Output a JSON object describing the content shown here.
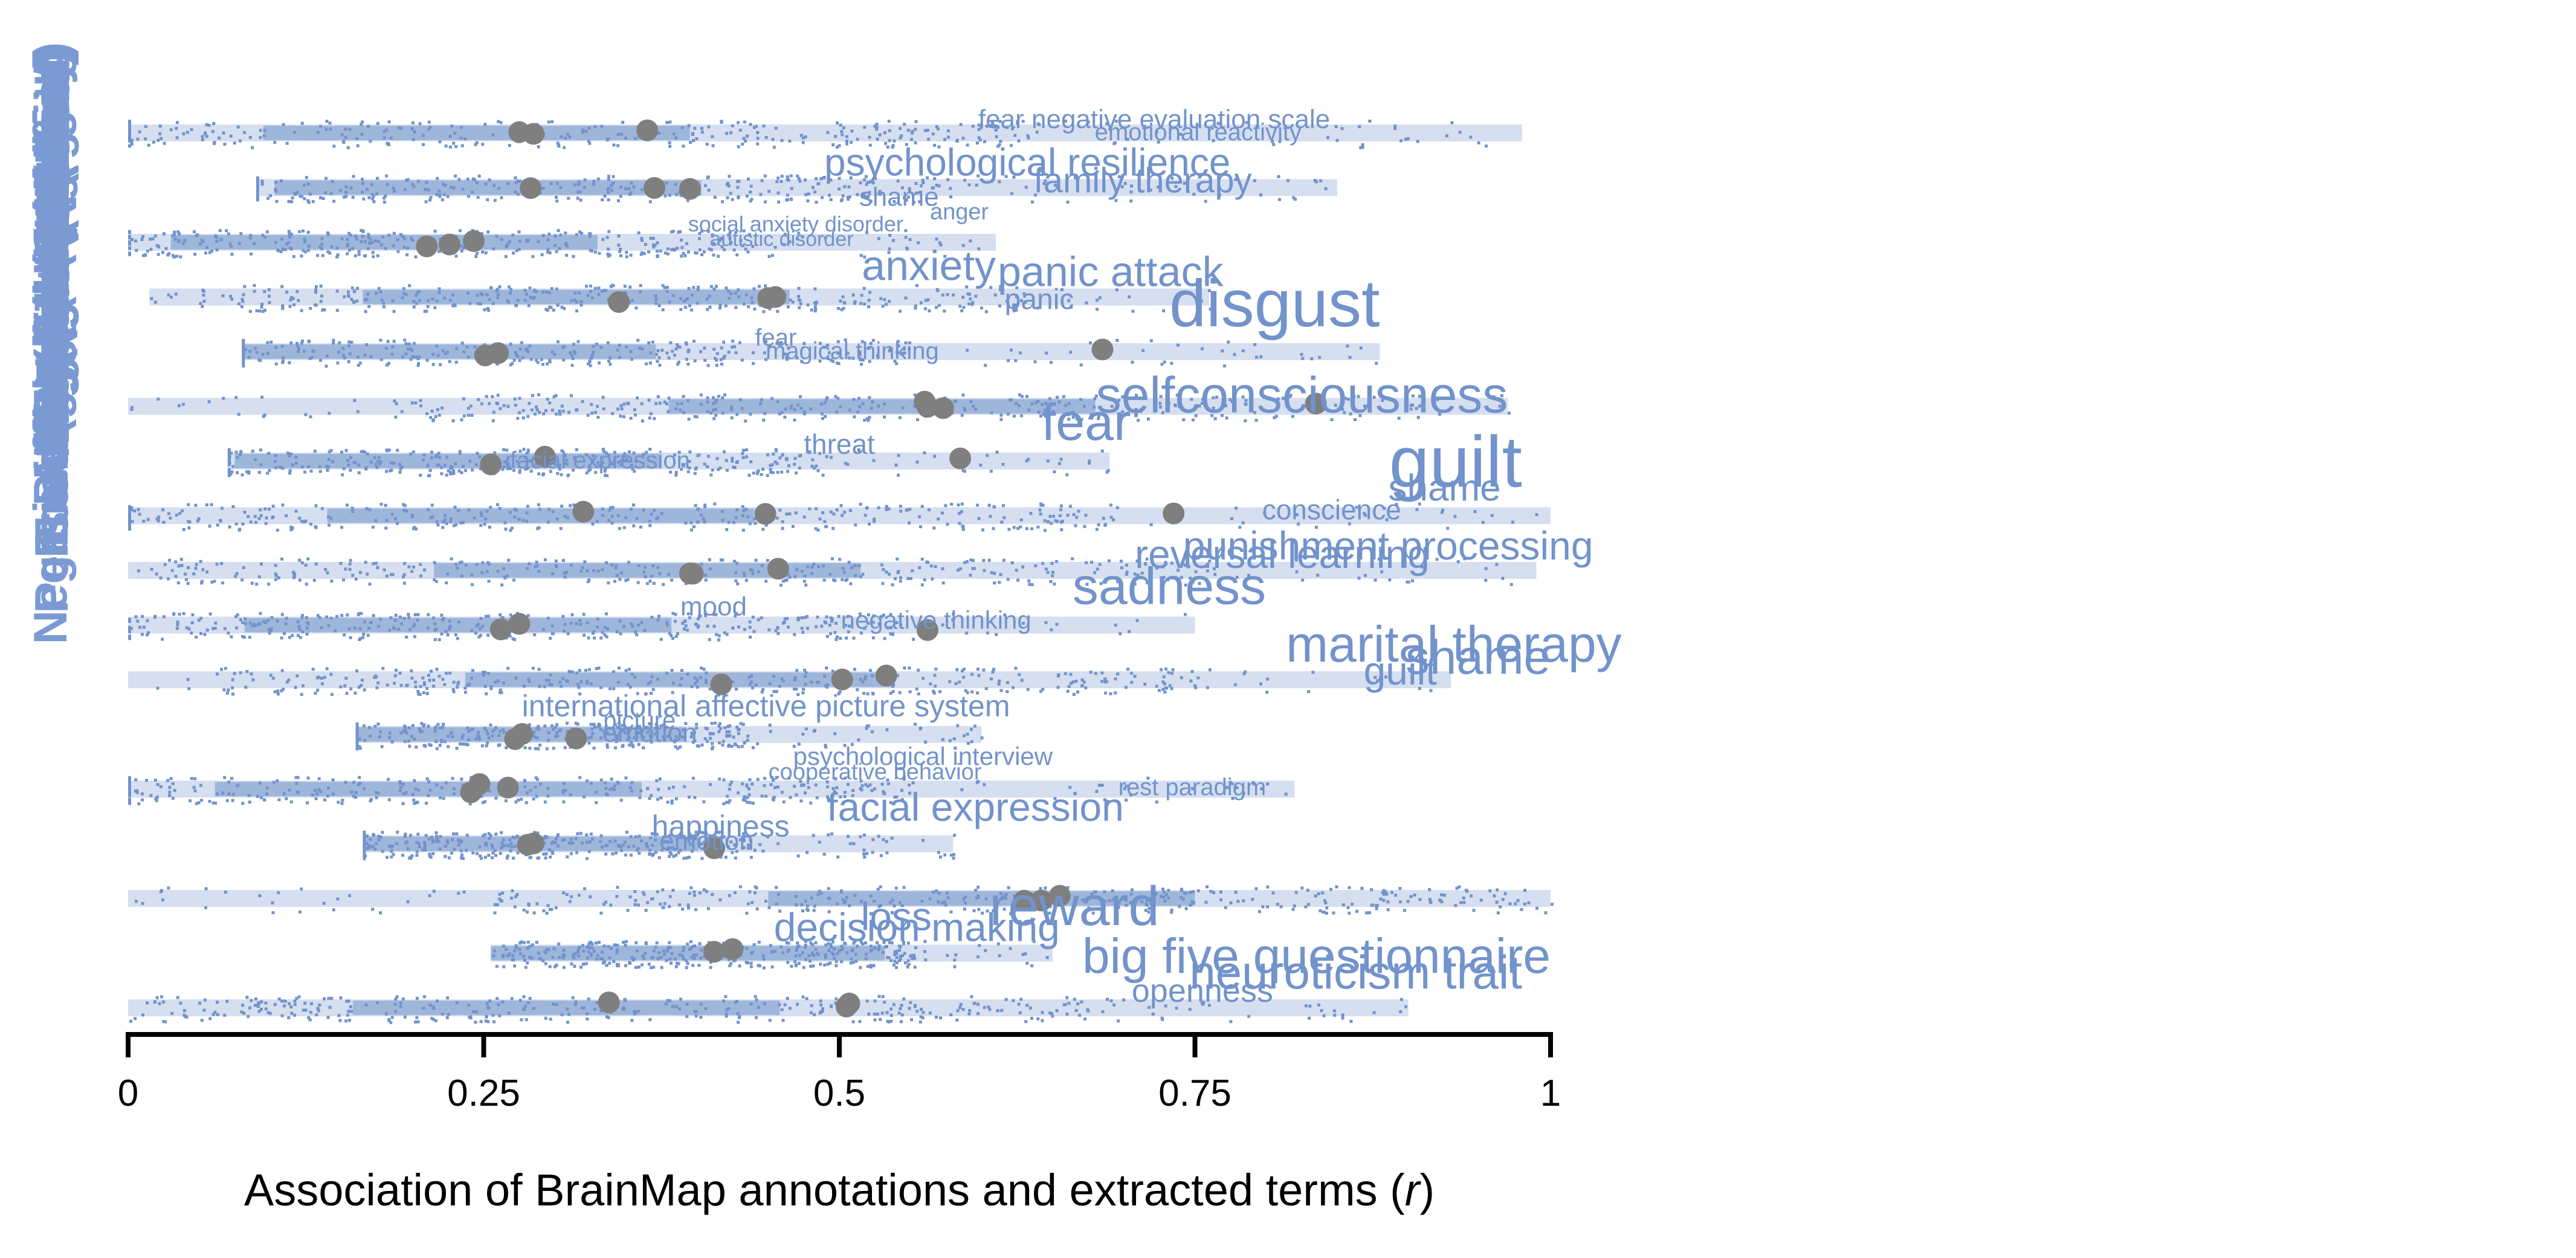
{
  "chart_data": {
    "type": "scatter",
    "xlabel_prefix": "Association of BrainMap annotations and extracted terms (",
    "xlabel_var": "r",
    "xlabel_suffix": ")",
    "xlim": [
      0,
      1
    ],
    "xticks": [
      {
        "value": 0,
        "label": "0"
      },
      {
        "value": 0.25,
        "label": "0.25"
      },
      {
        "value": 0.5,
        "label": "0.5"
      },
      {
        "value": 0.75,
        "label": "0.75"
      },
      {
        "value": 1,
        "label": "1"
      }
    ],
    "row_labels": [
      "Positive (Happiness)",
      "Positive (Reward/Gain)",
      "Positive (Love)",
      "Negative (Anger)",
      "Negative (Anxiety)",
      "Negative (Disgust)",
      "Negative (Embarrassment)",
      "Negative (Fear)",
      "Negative (Guilt)",
      "Negative (Sadness)",
      "Emotion (Unspecified)",
      "Negative (Shame)",
      "Affect (Unspecified)",
      "Social Cognition",
      "Reward",
      "Decision Making",
      "Personality (Neuroticism)"
    ],
    "rows": [
      {
        "range": [
          0.0,
          0.98
        ],
        "dots": [
          0.365,
          0.285,
          0.275
        ]
      },
      {
        "range": [
          0.09,
          0.85
        ],
        "dots": [
          0.395,
          0.37,
          0.283
        ]
      },
      {
        "range": [
          0.0,
          0.61
        ],
        "dots": [
          0.243,
          0.226,
          0.21
        ]
      },
      {
        "range": [
          0.015,
          0.76
        ],
        "dots": [
          0.455,
          0.45,
          0.345
        ]
      },
      {
        "range": [
          0.08,
          0.88
        ],
        "dots": [
          0.685,
          0.26,
          0.251
        ]
      },
      {
        "range": [
          0.0,
          0.97
        ],
        "dots": [
          0.835,
          0.573,
          0.562,
          0.56
        ]
      },
      {
        "range": [
          0.07,
          0.69
        ],
        "dots": [
          0.585,
          0.293,
          0.255
        ]
      },
      {
        "range": [
          0.0,
          1.0
        ],
        "dots": [
          0.735,
          0.448,
          0.32
        ]
      },
      {
        "range": [
          0.0,
          0.99
        ],
        "dots": [
          0.457,
          0.397,
          0.395
        ]
      },
      {
        "range": [
          0.0,
          0.75
        ],
        "dots": [
          0.562,
          0.275,
          0.262
        ]
      },
      {
        "range": [
          0.0,
          0.93
        ],
        "dots": [
          0.533,
          0.502,
          0.417
        ]
      },
      {
        "range": [
          0.16,
          0.6
        ],
        "dots": [
          0.315,
          0.277,
          0.272
        ]
      },
      {
        "range": [
          0.0,
          0.82
        ],
        "dots": [
          0.267,
          0.247,
          0.241
        ]
      },
      {
        "range": [
          0.165,
          0.58
        ],
        "dots": [
          0.412,
          0.285,
          0.281
        ]
      },
      {
        "range": [
          0.0,
          1.0
        ],
        "dots": [
          0.655,
          0.642,
          0.63
        ]
      },
      {
        "range": [
          0.255,
          0.65
        ],
        "dots": [
          0.425,
          0.412
        ]
      },
      {
        "range": [
          0.0,
          0.9
        ],
        "dots": [
          0.507,
          0.505,
          0.338
        ]
      }
    ],
    "terms": [
      {
        "row": 0,
        "x": 0.845,
        "dy": -8,
        "text": "fear negative evaluation scale",
        "size": 44
      },
      {
        "row": 0,
        "x": 0.825,
        "dy": 12,
        "text": "emotional reactivity",
        "size": 40
      },
      {
        "row": 1,
        "x": 0.775,
        "dy": -20,
        "text": "psychological resilience",
        "size": 64
      },
      {
        "row": 1,
        "x": 0.79,
        "dy": 8,
        "text": "family therapy",
        "size": 58
      },
      {
        "row": 1,
        "x": 0.57,
        "dy": 30,
        "text": "shame",
        "size": 44
      },
      {
        "row": 2,
        "x": 0.605,
        "dy": -38,
        "text": "anger",
        "size": 38
      },
      {
        "row": 2,
        "x": 0.545,
        "dy": -18,
        "text": "social anxiety disorder",
        "size": 36
      },
      {
        "row": 2,
        "x": 0.51,
        "dy": 6,
        "text": "autistic disorder",
        "size": 34
      },
      {
        "row": 3,
        "x": 0.61,
        "dy": -28,
        "text": "anxiety",
        "size": 70
      },
      {
        "row": 3,
        "x": 0.77,
        "dy": -18,
        "text": "panic attack",
        "size": 70
      },
      {
        "row": 3,
        "x": 0.665,
        "dy": 20,
        "text": "panic",
        "size": 48
      },
      {
        "row": 4,
        "x": 0.88,
        "dy": -42,
        "text": "disgust",
        "size": 110
      },
      {
        "row": 4,
        "x": 0.47,
        "dy": -10,
        "text": "fear",
        "size": 40
      },
      {
        "row": 4,
        "x": 0.57,
        "dy": 12,
        "text": "magical thinking",
        "size": 40
      },
      {
        "row": 5,
        "x": 0.97,
        "dy": 10,
        "text": "selfconsciousness",
        "size": 84
      },
      {
        "row": 6,
        "x": 0.525,
        "dy": -12,
        "text": "threat",
        "size": 46
      },
      {
        "row": 6,
        "x": 0.705,
        "dy": -35,
        "text": "fear",
        "size": 86
      },
      {
        "row": 6,
        "x": 0.395,
        "dy": 12,
        "text": "facial expression",
        "size": 40
      },
      {
        "row": 7,
        "x": 0.98,
        "dy": -48,
        "text": "guilt",
        "size": 120
      },
      {
        "row": 7,
        "x": 0.965,
        "dy": -25,
        "text": "shame",
        "size": 62
      },
      {
        "row": 7,
        "x": 0.895,
        "dy": 6,
        "text": "conscience",
        "size": 46
      },
      {
        "row": 8,
        "x": 1.03,
        "dy": -18,
        "text": "punishment processing",
        "size": 66
      },
      {
        "row": 8,
        "x": 0.915,
        "dy": -4,
        "text": "reversal learning",
        "size": 66
      },
      {
        "row": 9,
        "x": 0.8,
        "dy": -35,
        "text": "sadness",
        "size": 86
      },
      {
        "row": 9,
        "x": 0.435,
        "dy": -16,
        "text": "mood",
        "size": 44
      },
      {
        "row": 9,
        "x": 0.635,
        "dy": 6,
        "text": "negative thinking",
        "size": 42
      },
      {
        "row": 10,
        "x": 1.05,
        "dy": -30,
        "text": "marital therapy",
        "size": 84
      },
      {
        "row": 10,
        "x": 1.0,
        "dy": -10,
        "text": "shame",
        "size": 80
      },
      {
        "row": 10,
        "x": 0.92,
        "dy": 8,
        "text": "guilt",
        "size": 66
      },
      {
        "row": 11,
        "x": 0.62,
        "dy": -30,
        "text": "international affective picture system",
        "size": 50
      },
      {
        "row": 11,
        "x": 0.385,
        "dy": -10,
        "text": "picture",
        "size": 40
      },
      {
        "row": 11,
        "x": 0.4,
        "dy": 12,
        "text": "emotion",
        "size": 44
      },
      {
        "row": 12,
        "x": 0.65,
        "dy": -40,
        "text": "psychological interview",
        "size": 42
      },
      {
        "row": 12,
        "x": 0.6,
        "dy": -16,
        "text": "cooperative behavior",
        "size": 38
      },
      {
        "row": 12,
        "x": 0.8,
        "dy": 10,
        "text": "rest paradigm",
        "size": 40
      },
      {
        "row": 13,
        "x": 0.7,
        "dy": -38,
        "text": "facial expression",
        "size": 66
      },
      {
        "row": 13,
        "x": 0.465,
        "dy": -12,
        "text": "happiness",
        "size": 50
      },
      {
        "row": 13,
        "x": 0.44,
        "dy": 10,
        "text": "emotion",
        "size": 44
      },
      {
        "row": 14,
        "x": 0.725,
        "dy": 44,
        "text": "reward",
        "size": 92
      },
      {
        "row": 15,
        "x": 0.565,
        "dy": -38,
        "text": "loss",
        "size": 66
      },
      {
        "row": 15,
        "x": 0.655,
        "dy": -20,
        "text": "decision making",
        "size": 66
      },
      {
        "row": 16,
        "x": 1.0,
        "dy": -58,
        "text": "big five questionnaire",
        "size": 82
      },
      {
        "row": 16,
        "x": 0.98,
        "dy": -32,
        "text": "neuroticism trait",
        "size": 78
      },
      {
        "row": 16,
        "x": 0.805,
        "dy": -10,
        "text": "openness",
        "size": 54
      }
    ],
    "colors": {
      "points": "#7293cb",
      "range_band": "#d6dff0",
      "mean_dot": "#7f7f7f",
      "terms": "#7293cb",
      "row_labels": "#7b9ad3",
      "axis": "#000000"
    }
  }
}
